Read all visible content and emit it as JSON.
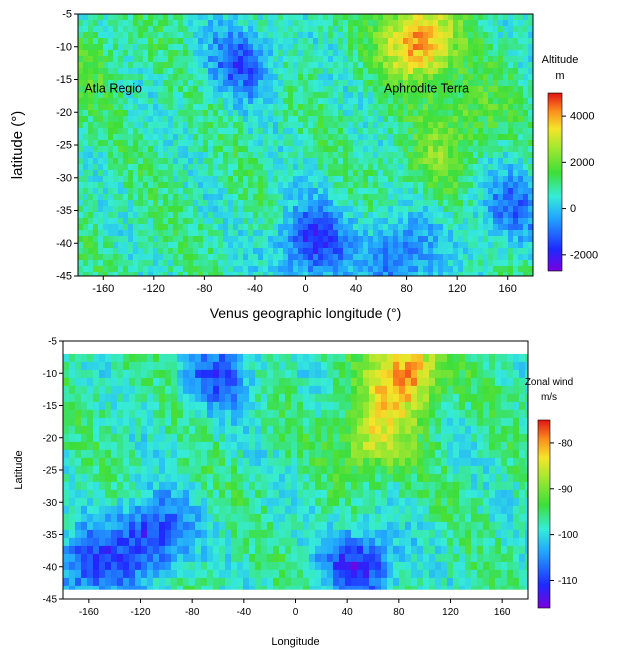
{
  "chart_data": [
    {
      "type": "heatmap",
      "title": "",
      "xlabel": "Venus geographic longitude (°)",
      "ylabel": "latitude (°)",
      "xlim": [
        -180,
        180
      ],
      "ylim": [
        -45,
        -5
      ],
      "x_ticks": [
        -160,
        -120,
        -80,
        -40,
        0,
        40,
        80,
        120,
        160
      ],
      "y_ticks": [
        -5,
        -10,
        -15,
        -20,
        -25,
        -30,
        -35,
        -40,
        -45
      ],
      "colorbar": {
        "title": "Altitude",
        "unit": "m",
        "range": [
          -2700,
          5000
        ],
        "ticks": [
          4000,
          2000,
          0,
          -2000
        ],
        "colormap": "rainbow (purple-blue-cyan-green-yellow-red)"
      },
      "annotations": [
        {
          "text": "Atla Regio",
          "lon": -175,
          "lat": -17
        },
        {
          "text": "Aphrodite Terra",
          "lon": 62,
          "lat": -17
        }
      ],
      "regions": [
        {
          "label": "high",
          "lon": 90,
          "lat": -9,
          "value": 4500
        },
        {
          "label": "high",
          "lon": 130,
          "lat": -20,
          "value": 2000
        },
        {
          "label": "high",
          "lon": 100,
          "lat": -28,
          "value": 1800
        },
        {
          "label": "high",
          "lon": -170,
          "lat": -12,
          "value": 1600
        },
        {
          "label": "low",
          "lon": 5,
          "lat": -40,
          "value": -1800
        },
        {
          "label": "low",
          "lon": -50,
          "lat": -12,
          "value": -1200
        },
        {
          "label": "low",
          "lon": 75,
          "lat": -42,
          "value": -1300
        },
        {
          "label": "low",
          "lon": 160,
          "lat": -35,
          "value": -900
        }
      ]
    },
    {
      "type": "heatmap",
      "title": "",
      "xlabel": "Longitude",
      "ylabel": "Latitude",
      "xlim": [
        -180,
        180
      ],
      "ylim": [
        -45,
        -5
      ],
      "x_ticks": [
        -160,
        -120,
        -80,
        -40,
        0,
        40,
        80,
        120,
        160
      ],
      "y_ticks": [
        -5,
        -10,
        -15,
        -20,
        -25,
        -30,
        -35,
        -40,
        -45
      ],
      "colorbar": {
        "title": "Zonal wind",
        "unit": "m/s",
        "range": [
          -116,
          -75
        ],
        "ticks": [
          -80,
          -90,
          -100,
          -110
        ],
        "colormap": "rainbow (purple-blue-cyan-green-yellow-red)"
      },
      "regions": [
        {
          "label": "slow",
          "lon": 85,
          "lat": -10,
          "value": -78
        },
        {
          "label": "slow",
          "lon": 60,
          "lat": -20,
          "value": -85
        },
        {
          "label": "fast",
          "lon": -110,
          "lat": -35,
          "value": -112
        },
        {
          "label": "fast",
          "lon": -160,
          "lat": -40,
          "value": -110
        },
        {
          "label": "fast",
          "lon": 50,
          "lat": -40,
          "value": -112
        },
        {
          "label": "fast",
          "lon": -60,
          "lat": -10,
          "value": -108
        }
      ]
    }
  ]
}
